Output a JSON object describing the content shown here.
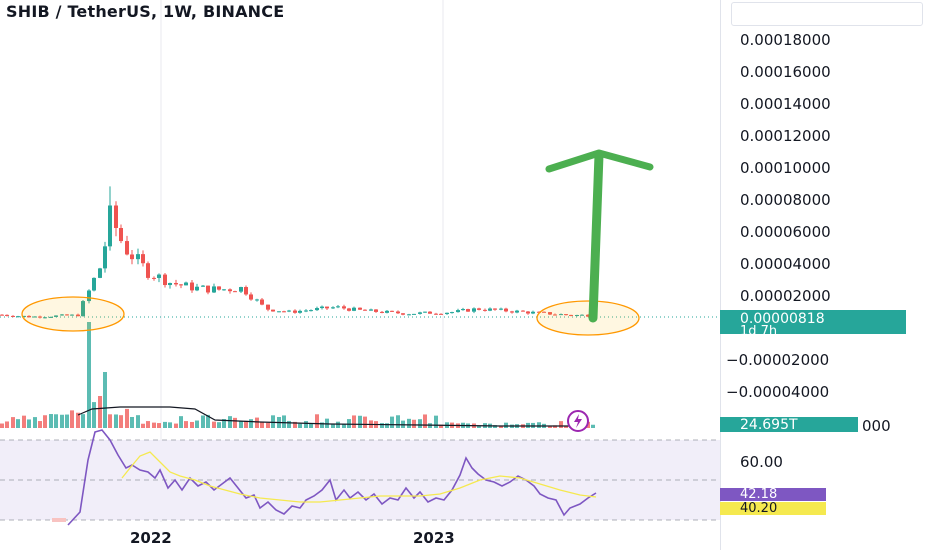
{
  "header": {
    "title": "SHIB / TetherUS, 1W, BINANCE"
  },
  "price_axis": {
    "labels": [
      "0.00018000",
      "0.00016000",
      "0.00014000",
      "0.00012000",
      "0.00010000",
      "0.00008000",
      "0.00006000",
      "0.00004000",
      "0.00002000",
      "−0.00002000",
      "−0.00004000"
    ],
    "current_price": "0.00000818",
    "countdown": "1d 7h",
    "volume_value": "24.695T",
    "volume_axis_tail": "000"
  },
  "rsi_axis": {
    "level_label": "60.00",
    "rsi_value": "42.18",
    "rsi_ma_value": "40.20"
  },
  "time_axis": {
    "labels": [
      "2022",
      "2023"
    ]
  },
  "colors": {
    "up": "#26a69a",
    "down": "#ef5350",
    "rsi": "#7e57c2",
    "rsi_ma": "#f5e94f",
    "arrow": "#4caf50",
    "highlight": "#ff9800",
    "bolt": "#9c27b0"
  },
  "icons": [
    "lightning-bolt-icon"
  ],
  "chart_data": [
    {
      "type": "candlestick",
      "title": "SHIB / TetherUS, 1W, BINANCE",
      "x_unit": "week",
      "x_range": [
        "2021-05",
        "2023-06"
      ],
      "ylim": [
        -4e-05,
        0.00018
      ],
      "y_ticks": [
        0.00018,
        0.00016,
        0.00014,
        0.00012,
        0.0001,
        8e-05,
        6e-05,
        4e-05,
        2e-05,
        -2e-05,
        -4e-05
      ],
      "x_ticks": [
        "2022",
        "2023"
      ],
      "current_price": 8.18e-06,
      "approx_peak_high": 8.85e-05,
      "close_path": [
        [
          "2021-05",
          9e-06
        ],
        [
          "2021-07",
          7e-06
        ],
        [
          "2021-09",
          8e-06
        ],
        [
          "2021-10",
          4e-05
        ],
        [
          "2021-10-27",
          7e-05
        ],
        [
          "2021-11",
          5e-05
        ],
        [
          "2021-12",
          3.5e-05
        ],
        [
          "2022-01",
          2.8e-05
        ],
        [
          "2022-02",
          2.5e-05
        ],
        [
          "2022-03",
          2.4e-05
        ],
        [
          "2022-04",
          2.5e-05
        ],
        [
          "2022-05",
          1.2e-05
        ],
        [
          "2022-06",
          1e-05
        ],
        [
          "2022-08",
          1.3e-05
        ],
        [
          "2022-09",
          1.1e-05
        ],
        [
          "2022-11",
          9e-06
        ],
        [
          "2023-01",
          1e-05
        ],
        [
          "2023-02",
          1.2e-05
        ],
        [
          "2023-04",
          1e-05
        ],
        [
          "2023-06",
          8e-06
        ]
      ],
      "annotations": [
        "orange circle around price range mid-2021",
        "orange circle around current price",
        "green upward arrow"
      ],
      "grid": true
    },
    {
      "type": "bar",
      "name": "Volume",
      "last_value": "24.695T",
      "overlay": "volume moving average line"
    },
    {
      "type": "line",
      "name": "RSI",
      "ylim": [
        20,
        80
      ],
      "levels": [
        70,
        50,
        30
      ],
      "level_label": 60.0,
      "last_rsi": 42.18,
      "last_rsi_ma": 40.2
    }
  ]
}
